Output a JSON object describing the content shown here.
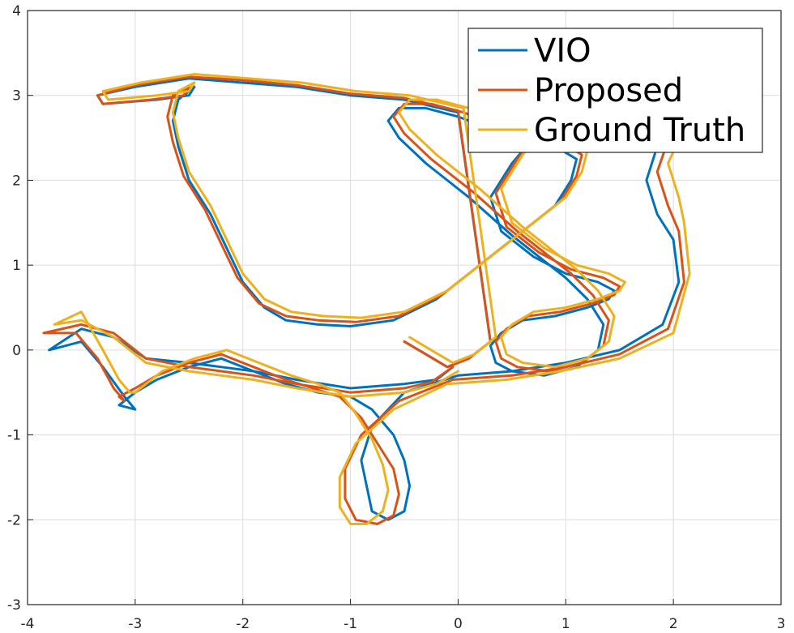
{
  "chart_data": {
    "type": "line",
    "title": "",
    "xlabel": "",
    "ylabel": "",
    "xlim": [
      -4,
      3
    ],
    "ylim": [
      -3,
      4
    ],
    "xticks": [
      -4,
      -3,
      -2,
      -1,
      0,
      1,
      2,
      3
    ],
    "yticks": [
      -3,
      -2,
      -1,
      0,
      1,
      2,
      3,
      4
    ],
    "grid": true,
    "legend_position": "top-right",
    "series": [
      {
        "name": "VIO",
        "color": "#0072BD",
        "x": [
          -0.05,
          -0.2,
          -0.5,
          -1.0,
          -1.5,
          -1.9,
          -2.2,
          -2.5,
          -2.9,
          -3.2,
          -3.5,
          -3.8,
          -3.5,
          -3.3,
          -3.1,
          -3.0,
          -3.15,
          -3.0,
          -2.8,
          -2.5,
          -2.2,
          -1.9,
          -1.6,
          -1.3,
          -1.0,
          -0.8,
          -0.6,
          -0.5,
          -0.45,
          -0.5,
          -0.65,
          -0.8,
          -0.85,
          -0.9,
          -0.8,
          -0.5,
          0.0,
          0.5,
          1.0,
          1.5,
          1.9,
          2.05,
          2.0,
          1.85,
          1.75,
          1.9,
          2.0,
          1.8,
          1.6,
          1.3,
          1.0,
          0.7,
          0.5,
          0.3,
          0.4,
          0.7,
          1.0,
          1.3,
          1.45,
          1.4,
          1.2,
          0.9,
          0.6,
          0.4,
          0.3,
          0.35,
          0.5,
          0.8,
          1.1,
          1.3,
          1.35,
          1.2,
          1.0,
          0.8,
          0.5,
          0.1,
          -0.3,
          -0.55,
          -0.65,
          -0.55,
          -0.3,
          0.0,
          0.3,
          0.6,
          0.9,
          1.1,
          1.05,
          0.9,
          0.6,
          0.2,
          -0.2,
          -0.6,
          -1.0,
          -1.3,
          -1.6,
          -1.8,
          -2.0,
          -2.15,
          -2.3,
          -2.5,
          -2.6,
          -2.65,
          -2.6,
          -2.45,
          -2.5,
          -2.8,
          -3.3,
          -3.35,
          -3.0,
          -2.5,
          -2.0,
          -1.5,
          -1.0,
          -0.5,
          0.0,
          0.3,
          0.1,
          -0.1,
          -0.3,
          -0.5
        ],
        "y": [
          -0.2,
          -0.35,
          -0.4,
          -0.45,
          -0.35,
          -0.25,
          -0.2,
          -0.15,
          -0.1,
          0.15,
          0.25,
          0.0,
          0.1,
          -0.2,
          -0.55,
          -0.7,
          -0.65,
          -0.5,
          -0.35,
          -0.2,
          -0.1,
          -0.25,
          -0.4,
          -0.5,
          -0.55,
          -0.7,
          -1.0,
          -1.3,
          -1.6,
          -1.9,
          -2.0,
          -1.9,
          -1.6,
          -1.3,
          -0.9,
          -0.5,
          -0.3,
          -0.25,
          -0.15,
          0.0,
          0.3,
          0.8,
          1.3,
          1.6,
          2.0,
          2.6,
          3.0,
          3.1,
          3.15,
          3.1,
          2.9,
          2.5,
          2.2,
          1.8,
          1.4,
          1.1,
          0.9,
          0.8,
          0.7,
          0.6,
          0.5,
          0.4,
          0.35,
          0.2,
          0.05,
          -0.15,
          -0.25,
          -0.3,
          -0.2,
          0.0,
          0.3,
          0.6,
          0.85,
          1.05,
          1.35,
          1.8,
          2.2,
          2.5,
          2.7,
          2.85,
          2.85,
          2.75,
          2.6,
          2.5,
          2.4,
          2.25,
          2.0,
          1.7,
          1.4,
          1.0,
          0.6,
          0.35,
          0.28,
          0.3,
          0.35,
          0.5,
          0.8,
          1.2,
          1.6,
          2.0,
          2.4,
          2.7,
          2.95,
          3.1,
          3.0,
          2.95,
          2.9,
          3.0,
          3.1,
          3.2,
          3.15,
          3.1,
          3.0,
          2.95,
          2.8,
          0.1,
          -0.1,
          -0.2,
          -0.05,
          0.1
        ]
      },
      {
        "name": "Proposed",
        "color": "#D95319",
        "x": [
          -0.05,
          -0.25,
          -0.5,
          -1.0,
          -1.5,
          -1.9,
          -2.2,
          -2.5,
          -2.9,
          -3.2,
          -3.5,
          -3.85,
          -3.55,
          -3.35,
          -3.2,
          -3.1,
          -3.15,
          -3.0,
          -2.8,
          -2.5,
          -2.2,
          -1.9,
          -1.6,
          -1.35,
          -1.1,
          -0.9,
          -0.75,
          -0.6,
          -0.55,
          -0.6,
          -0.75,
          -0.95,
          -1.05,
          -1.05,
          -0.9,
          -0.55,
          -0.05,
          0.5,
          1.0,
          1.5,
          1.95,
          2.1,
          2.05,
          1.95,
          1.85,
          2.0,
          2.05,
          1.85,
          1.65,
          1.35,
          1.05,
          0.75,
          0.55,
          0.35,
          0.45,
          0.75,
          1.05,
          1.35,
          1.5,
          1.45,
          1.25,
          0.95,
          0.65,
          0.45,
          0.35,
          0.4,
          0.55,
          0.85,
          1.15,
          1.35,
          1.4,
          1.25,
          1.05,
          0.85,
          0.55,
          0.15,
          -0.25,
          -0.5,
          -0.6,
          -0.5,
          -0.25,
          0.05,
          0.35,
          0.65,
          0.95,
          1.15,
          1.1,
          0.95,
          0.65,
          0.25,
          -0.15,
          -0.55,
          -0.95,
          -1.3,
          -1.6,
          -1.85,
          -2.05,
          -2.2,
          -2.35,
          -2.55,
          -2.65,
          -2.7,
          -2.65,
          -2.5,
          -2.55,
          -2.85,
          -3.3,
          -3.35,
          -3.0,
          -2.5,
          -2.0,
          -1.5,
          -1.0,
          -0.5,
          0.0,
          0.3,
          0.1,
          -0.1,
          -0.3,
          -0.5
        ],
        "y": [
          -0.2,
          -0.38,
          -0.45,
          -0.5,
          -0.4,
          -0.3,
          -0.25,
          -0.2,
          -0.1,
          0.2,
          0.3,
          0.2,
          0.2,
          -0.1,
          -0.45,
          -0.6,
          -0.55,
          -0.45,
          -0.3,
          -0.15,
          -0.05,
          -0.2,
          -0.35,
          -0.45,
          -0.55,
          -0.8,
          -1.1,
          -1.4,
          -1.7,
          -1.95,
          -2.05,
          -2.0,
          -1.75,
          -1.4,
          -1.0,
          -0.6,
          -0.35,
          -0.3,
          -0.2,
          -0.05,
          0.25,
          0.8,
          1.4,
          1.7,
          2.1,
          2.65,
          3.05,
          3.15,
          3.2,
          3.15,
          2.95,
          2.55,
          2.25,
          1.85,
          1.45,
          1.15,
          0.95,
          0.85,
          0.75,
          0.65,
          0.55,
          0.45,
          0.4,
          0.25,
          0.1,
          -0.1,
          -0.2,
          -0.25,
          -0.15,
          0.05,
          0.35,
          0.65,
          0.9,
          1.1,
          1.4,
          1.85,
          2.25,
          2.55,
          2.75,
          2.9,
          2.9,
          2.8,
          2.65,
          2.55,
          2.45,
          2.3,
          2.05,
          1.75,
          1.45,
          1.05,
          0.65,
          0.4,
          0.33,
          0.35,
          0.4,
          0.55,
          0.85,
          1.25,
          1.65,
          2.05,
          2.45,
          2.75,
          3.0,
          3.1,
          3.0,
          2.95,
          2.9,
          3.0,
          3.12,
          3.22,
          3.18,
          3.12,
          3.02,
          2.97,
          2.82,
          0.1,
          -0.1,
          -0.2,
          -0.05,
          0.1
        ]
      },
      {
        "name": "Ground Truth",
        "color": "#EDB120",
        "x": [
          0.0,
          -0.2,
          -0.5,
          -1.0,
          -1.5,
          -1.9,
          -2.2,
          -2.5,
          -2.9,
          -3.2,
          -3.5,
          -3.75,
          -3.5,
          -3.3,
          -3.15,
          -3.05,
          -3.0,
          -2.9,
          -2.75,
          -2.45,
          -2.15,
          -1.85,
          -1.55,
          -1.3,
          -1.1,
          -0.95,
          -0.8,
          -0.7,
          -0.65,
          -0.7,
          -0.85,
          -1.0,
          -1.1,
          -1.1,
          -0.95,
          -0.6,
          -0.1,
          0.45,
          0.95,
          1.5,
          2.0,
          2.15,
          2.1,
          2.05,
          1.95,
          2.15,
          2.25,
          1.95,
          1.7,
          1.4,
          1.1,
          0.8,
          0.6,
          0.4,
          0.5,
          0.8,
          1.1,
          1.4,
          1.55,
          1.5,
          1.3,
          1.0,
          0.7,
          0.5,
          0.4,
          0.45,
          0.6,
          0.9,
          1.2,
          1.4,
          1.45,
          1.3,
          1.1,
          0.9,
          0.6,
          0.2,
          -0.2,
          -0.45,
          -0.55,
          -0.45,
          -0.2,
          0.1,
          0.4,
          0.7,
          1.0,
          1.2,
          1.15,
          1.0,
          0.7,
          0.3,
          -0.1,
          -0.5,
          -0.9,
          -1.25,
          -1.55,
          -1.8,
          -2.0,
          -2.15,
          -2.3,
          -2.5,
          -2.6,
          -2.65,
          -2.6,
          -2.45,
          -2.5,
          -2.8,
          -3.25,
          -3.3,
          -2.95,
          -2.45,
          -1.95,
          -1.45,
          -0.95,
          -0.45,
          0.05,
          0.35,
          0.15,
          -0.05,
          -0.25,
          -0.45
        ],
        "y": [
          -0.25,
          -0.4,
          -0.5,
          -0.55,
          -0.45,
          -0.35,
          -0.3,
          -0.25,
          -0.15,
          0.15,
          0.35,
          0.3,
          0.45,
          0.0,
          -0.35,
          -0.5,
          -0.5,
          -0.4,
          -0.25,
          -0.1,
          0.0,
          -0.15,
          -0.3,
          -0.4,
          -0.5,
          -0.75,
          -1.05,
          -1.35,
          -1.65,
          -1.9,
          -2.05,
          -2.05,
          -1.85,
          -1.5,
          -1.1,
          -0.7,
          -0.4,
          -0.35,
          -0.25,
          -0.1,
          0.2,
          0.9,
          1.5,
          1.8,
          2.2,
          2.75,
          3.1,
          3.2,
          3.25,
          3.2,
          3.0,
          2.6,
          2.3,
          1.9,
          1.5,
          1.2,
          1.0,
          0.9,
          0.8,
          0.7,
          0.6,
          0.5,
          0.45,
          0.3,
          0.15,
          -0.05,
          -0.15,
          -0.2,
          -0.1,
          0.1,
          0.4,
          0.7,
          0.95,
          1.15,
          1.45,
          1.9,
          2.3,
          2.6,
          2.8,
          2.95,
          2.95,
          2.85,
          2.7,
          2.6,
          2.5,
          2.35,
          2.1,
          1.8,
          1.5,
          1.1,
          0.7,
          0.45,
          0.38,
          0.4,
          0.45,
          0.6,
          0.9,
          1.3,
          1.7,
          2.1,
          2.5,
          2.8,
          3.05,
          3.15,
          3.05,
          3.0,
          2.95,
          3.05,
          3.15,
          3.25,
          3.2,
          3.15,
          3.05,
          3.0,
          2.85,
          0.15,
          -0.05,
          -0.15,
          0.0,
          0.15
        ]
      }
    ]
  }
}
